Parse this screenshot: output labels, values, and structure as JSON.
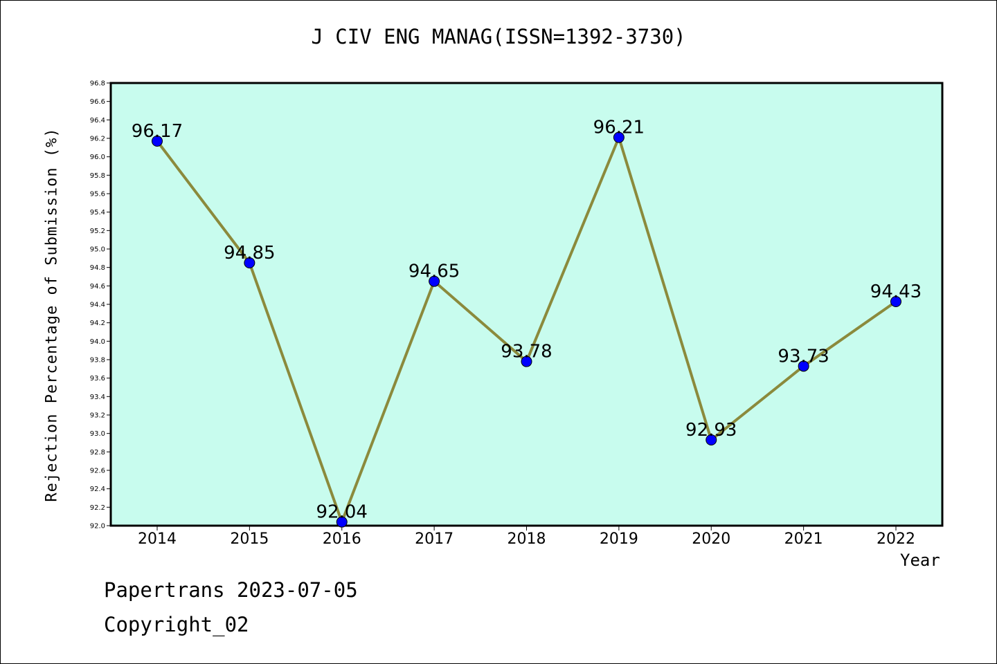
{
  "chart_data": {
    "type": "line",
    "title": "J CIV ENG MANAG(ISSN=1392-3730)",
    "xlabel": "Year",
    "ylabel": "Rejection Percentage of Submission (%)",
    "categories": [
      "2014",
      "2015",
      "2016",
      "2017",
      "2018",
      "2019",
      "2020",
      "2021",
      "2022"
    ],
    "series": [
      {
        "values": [
          96.17,
          94.85,
          92.04,
          94.65,
          93.78,
          96.21,
          92.93,
          93.73,
          94.43
        ],
        "labels": [
          "96.17",
          "94.85",
          "92.04",
          "94.65",
          "93.78",
          "96.21",
          "92.93",
          "93.73",
          "94.43"
        ]
      }
    ],
    "ylim": [
      92.0,
      96.8
    ],
    "ytick_step": 0.2,
    "grid": false,
    "colors": {
      "plot_background": "#c8fcee",
      "line": "#8b8a3c",
      "marker": "#0000ff"
    }
  },
  "footer": {
    "line1": "Papertrans 2023-07-05",
    "line2": "Copyright_02"
  }
}
